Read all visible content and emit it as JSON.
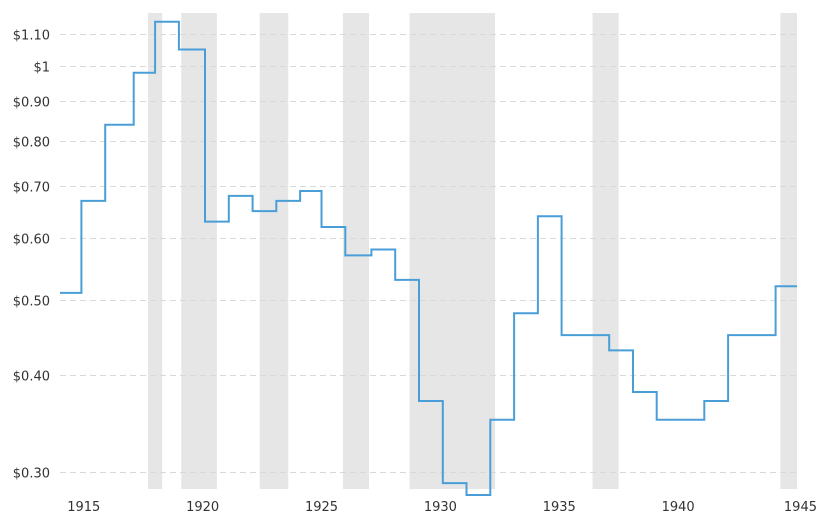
{
  "chart_data": {
    "type": "line",
    "title": "",
    "xlabel": "",
    "ylabel": "",
    "y_scale": "log",
    "xlim": [
      1914.0,
      1945.0
    ],
    "ylim": [
      0.285,
      1.17
    ],
    "x_ticks": [
      1915,
      1920,
      1925,
      1930,
      1935,
      1940,
      1945
    ],
    "x_tick_labels": [
      "1915",
      "1920",
      "1925",
      "1930",
      "1935",
      "1940",
      "1945"
    ],
    "y_ticks": [
      0.3,
      0.4,
      0.5,
      0.6,
      0.7,
      0.8,
      0.9,
      1.0,
      1.1
    ],
    "y_tick_labels": [
      "$0.30",
      "$0.40",
      "$0.50",
      "$0.60",
      "$0.70",
      "$0.80",
      "$0.90",
      "$1",
      "$1.10"
    ],
    "grid": true,
    "shaded_periods": [
      [
        1917.7,
        1918.3
      ],
      [
        1919.1,
        1920.6
      ],
      [
        1922.4,
        1923.6
      ],
      [
        1925.9,
        1927.0
      ],
      [
        1928.7,
        1932.3
      ],
      [
        1936.4,
        1937.5
      ],
      [
        1944.3,
        1945.0
      ]
    ],
    "series": [
      {
        "color": "#4a9ed8",
        "step": true,
        "x": [
          1914.0,
          1914.9,
          1915.9,
          1917.1,
          1918.0,
          1919.0,
          1920.1,
          1921.1,
          1922.1,
          1923.1,
          1924.1,
          1925.0,
          1926.0,
          1927.1,
          1928.1,
          1929.1,
          1930.1,
          1931.1,
          1932.1,
          1933.1,
          1934.1,
          1935.1,
          1937.1,
          1938.1,
          1939.1,
          1941.1,
          1942.1,
          1944.1,
          1945.0
        ],
        "y": [
          0.51,
          0.67,
          0.84,
          0.98,
          1.14,
          1.05,
          0.63,
          0.68,
          0.65,
          0.67,
          0.69,
          0.62,
          0.57,
          0.58,
          0.53,
          0.37,
          0.29,
          0.28,
          0.35,
          0.48,
          0.64,
          0.45,
          0.43,
          0.38,
          0.35,
          0.37,
          0.45,
          0.52,
          0.52
        ]
      }
    ]
  }
}
